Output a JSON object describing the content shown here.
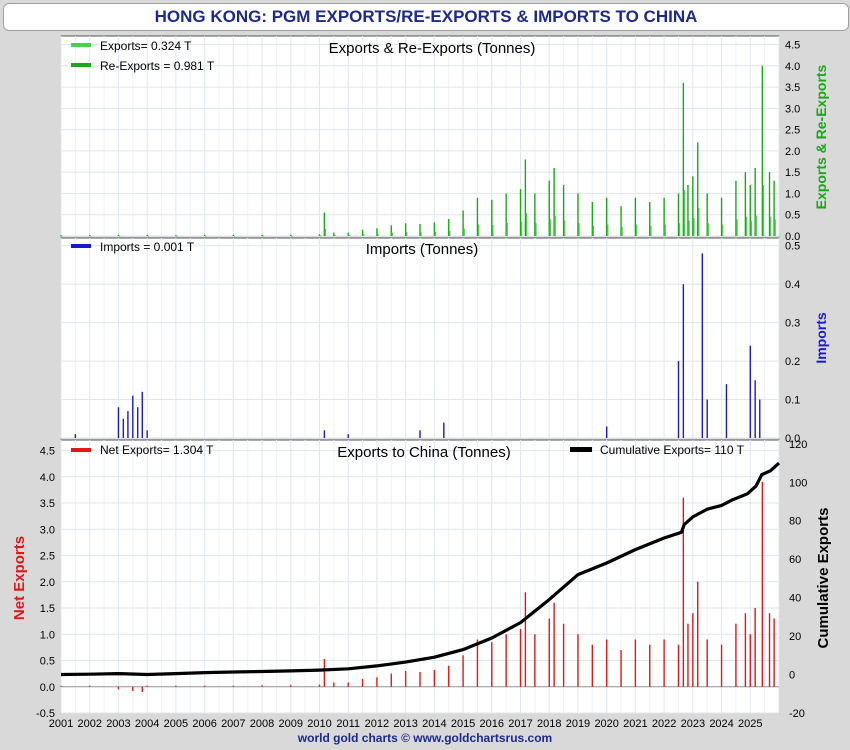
{
  "page_title": "HONG KONG: PGM EXPORTS/RE-EXPORTS & IMPORTS TO CHINA",
  "footer": "world gold charts © www.goldchartsrus.com",
  "colors": {
    "exports": "#4cd14c",
    "reexports": "#1aa81a",
    "imports": "#1a1ad6",
    "net": "#e01818",
    "cumulative": "#000000",
    "title": "#1c2a8c"
  },
  "chart_data": [
    {
      "type": "bar",
      "title": "Exports & Re-Exports (Tonnes)",
      "ylabel": "Exports & Re-Exports",
      "ylabel_side": "right",
      "ylim": [
        0,
        4.7
      ],
      "ticks": [
        "0.0",
        "0.5",
        "1.0",
        "1.5",
        "2.0",
        "2.5",
        "3.0",
        "3.5",
        "4.0",
        "4.5"
      ],
      "legend_position": "top-left",
      "grid": true,
      "series": [
        {
          "name": "Exports= 0.324 T",
          "legend": "Exports= 0.324 T",
          "color": "#4cd14c"
        },
        {
          "name": "Re-Exports = 0.981 T",
          "legend": "Re-Exports = 0.981 T",
          "color": "#1aa81a"
        }
      ],
      "points": [
        [
          2001.0,
          0.02
        ],
        [
          2002.0,
          0.02
        ],
        [
          2003.0,
          0.03
        ],
        [
          2004.0,
          0.03
        ],
        [
          2005.0,
          0.02
        ],
        [
          2006.0,
          0.03
        ],
        [
          2007.0,
          0.03
        ],
        [
          2008.0,
          0.03
        ],
        [
          2009.0,
          0.03
        ],
        [
          2010.0,
          0.04
        ],
        [
          2010.17,
          0.55
        ],
        [
          2010.5,
          0.08
        ],
        [
          2011.0,
          0.08
        ],
        [
          2011.5,
          0.15
        ],
        [
          2012.0,
          0.18
        ],
        [
          2012.5,
          0.25
        ],
        [
          2013.0,
          0.3
        ],
        [
          2013.5,
          0.28
        ],
        [
          2014.0,
          0.32
        ],
        [
          2014.5,
          0.4
        ],
        [
          2015.0,
          0.6
        ],
        [
          2015.5,
          0.9
        ],
        [
          2016.0,
          0.85
        ],
        [
          2016.5,
          1.0
        ],
        [
          2017.0,
          1.1
        ],
        [
          2017.17,
          1.8
        ],
        [
          2017.5,
          1.0
        ],
        [
          2018.0,
          1.3
        ],
        [
          2018.17,
          1.6
        ],
        [
          2018.5,
          1.2
        ],
        [
          2019.0,
          1.0
        ],
        [
          2019.5,
          0.8
        ],
        [
          2020.0,
          0.9
        ],
        [
          2020.5,
          0.7
        ],
        [
          2021.0,
          0.9
        ],
        [
          2021.5,
          0.8
        ],
        [
          2022.0,
          0.9
        ],
        [
          2022.5,
          1.0
        ],
        [
          2022.67,
          3.6
        ],
        [
          2022.83,
          1.2
        ],
        [
          2023.0,
          1.4
        ],
        [
          2023.17,
          2.2
        ],
        [
          2023.5,
          1.0
        ],
        [
          2024.0,
          0.9
        ],
        [
          2024.5,
          1.3
        ],
        [
          2024.83,
          1.5
        ],
        [
          2025.0,
          1.2
        ],
        [
          2025.17,
          1.6
        ],
        [
          2025.42,
          4.0
        ],
        [
          2025.67,
          1.5
        ],
        [
          2025.83,
          1.3
        ]
      ]
    },
    {
      "type": "bar",
      "title": "Imports (Tonnes)",
      "ylabel": "Imports",
      "ylabel_side": "right",
      "ylim": [
        0,
        0.52
      ],
      "ticks": [
        "0.0",
        "0.1",
        "0.2",
        "0.3",
        "0.4",
        "0.5"
      ],
      "legend_position": "top-left",
      "grid": true,
      "series": [
        {
          "name": "Imports = 0.001 T",
          "legend": "Imports = 0.001 T",
          "color": "#1a1ad6"
        }
      ],
      "points": [
        [
          2001.5,
          0.01
        ],
        [
          2003.0,
          0.08
        ],
        [
          2003.17,
          0.05
        ],
        [
          2003.33,
          0.07
        ],
        [
          2003.5,
          0.11
        ],
        [
          2003.67,
          0.08
        ],
        [
          2003.83,
          0.12
        ],
        [
          2004.0,
          0.02
        ],
        [
          2010.17,
          0.02
        ],
        [
          2011.0,
          0.01
        ],
        [
          2013.5,
          0.02
        ],
        [
          2014.33,
          0.04
        ],
        [
          2020.0,
          0.03
        ],
        [
          2022.5,
          0.2
        ],
        [
          2022.67,
          0.4
        ],
        [
          2023.33,
          0.48
        ],
        [
          2023.5,
          0.1
        ],
        [
          2024.17,
          0.14
        ],
        [
          2025.0,
          0.24
        ],
        [
          2025.17,
          0.15
        ],
        [
          2025.33,
          0.1
        ]
      ]
    },
    {
      "type": "bar",
      "title": "Exports to China (Tonnes)",
      "ylabel": "Net Exports",
      "ylabel_side": "left",
      "y2label": "Cumulative Exports",
      "ylim": [
        -0.5,
        4.7
      ],
      "y2lim": [
        -20,
        122
      ],
      "ticks": [
        "-0.5",
        "0.0",
        "0.5",
        "1.0",
        "1.5",
        "2.0",
        "2.5",
        "3.0",
        "3.5",
        "4.0",
        "4.5"
      ],
      "ticks2": [
        "-20",
        "0",
        "20",
        "40",
        "60",
        "80",
        "100",
        "120"
      ],
      "xlim": [
        2001,
        2026
      ],
      "x_ticks": [
        "2001",
        "2002",
        "2003",
        "2004",
        "2005",
        "2006",
        "2007",
        "2008",
        "2009",
        "2010",
        "2011",
        "2012",
        "2013",
        "2014",
        "2015",
        "2016",
        "2017",
        "2018",
        "2019",
        "2020",
        "2021",
        "2022",
        "2023",
        "2024",
        "2025"
      ],
      "legend_position": "top",
      "grid": true,
      "series": [
        {
          "name": "Net Exports= 1.304 T",
          "legend": "Net Exports= 1.304 T",
          "color": "#e01818"
        },
        {
          "name": "Cumulative Exports= 110 T",
          "legend": "Cumulative Exports= 110 T",
          "color": "#000000",
          "type": "line"
        }
      ],
      "net_points": [
        [
          2001.0,
          0.02
        ],
        [
          2002.0,
          0.02
        ],
        [
          2003.0,
          -0.05
        ],
        [
          2003.5,
          -0.08
        ],
        [
          2003.83,
          -0.1
        ],
        [
          2004.0,
          0.02
        ],
        [
          2005.0,
          0.02
        ],
        [
          2006.0,
          0.02
        ],
        [
          2007.0,
          0.02
        ],
        [
          2008.0,
          0.03
        ],
        [
          2009.0,
          0.03
        ],
        [
          2010.0,
          0.04
        ],
        [
          2010.17,
          0.53
        ],
        [
          2010.5,
          0.08
        ],
        [
          2011.0,
          0.08
        ],
        [
          2011.5,
          0.15
        ],
        [
          2012.0,
          0.18
        ],
        [
          2012.5,
          0.25
        ],
        [
          2013.0,
          0.3
        ],
        [
          2013.5,
          0.28
        ],
        [
          2014.0,
          0.32
        ],
        [
          2014.5,
          0.4
        ],
        [
          2015.0,
          0.6
        ],
        [
          2015.5,
          0.9
        ],
        [
          2016.0,
          0.85
        ],
        [
          2016.5,
          1.0
        ],
        [
          2017.0,
          1.1
        ],
        [
          2017.17,
          1.8
        ],
        [
          2017.5,
          1.0
        ],
        [
          2018.0,
          1.3
        ],
        [
          2018.17,
          1.6
        ],
        [
          2018.5,
          1.2
        ],
        [
          2019.0,
          1.0
        ],
        [
          2019.5,
          0.8
        ],
        [
          2020.0,
          0.9
        ],
        [
          2020.5,
          0.7
        ],
        [
          2021.0,
          0.9
        ],
        [
          2021.5,
          0.8
        ],
        [
          2022.0,
          0.9
        ],
        [
          2022.5,
          0.8
        ],
        [
          2022.67,
          3.6
        ],
        [
          2022.83,
          1.2
        ],
        [
          2023.0,
          1.4
        ],
        [
          2023.17,
          2.0
        ],
        [
          2023.5,
          0.9
        ],
        [
          2024.0,
          0.8
        ],
        [
          2024.5,
          1.2
        ],
        [
          2024.83,
          1.4
        ],
        [
          2025.0,
          1.0
        ],
        [
          2025.17,
          1.5
        ],
        [
          2025.42,
          3.9
        ],
        [
          2025.67,
          1.4
        ],
        [
          2025.83,
          1.3
        ]
      ],
      "cumulative": [
        [
          2001,
          0
        ],
        [
          2002,
          0.2
        ],
        [
          2003,
          0.5
        ],
        [
          2004,
          0
        ],
        [
          2005,
          0.5
        ],
        [
          2006,
          1
        ],
        [
          2007,
          1.3
        ],
        [
          2008,
          1.6
        ],
        [
          2009,
          1.9
        ],
        [
          2010,
          2.3
        ],
        [
          2011,
          3
        ],
        [
          2012,
          4.5
        ],
        [
          2013,
          6.5
        ],
        [
          2014,
          9
        ],
        [
          2015,
          13
        ],
        [
          2016,
          19
        ],
        [
          2017,
          27
        ],
        [
          2018,
          39
        ],
        [
          2019,
          52
        ],
        [
          2020,
          58
        ],
        [
          2021,
          65
        ],
        [
          2022,
          71
        ],
        [
          2022.6,
          74
        ],
        [
          2022.7,
          78
        ],
        [
          2023,
          82
        ],
        [
          2023.5,
          86
        ],
        [
          2024,
          88
        ],
        [
          2024.4,
          91
        ],
        [
          2024.9,
          94
        ],
        [
          2025.2,
          98
        ],
        [
          2025.4,
          104
        ],
        [
          2025.7,
          106
        ],
        [
          2026,
          110
        ]
      ]
    }
  ]
}
